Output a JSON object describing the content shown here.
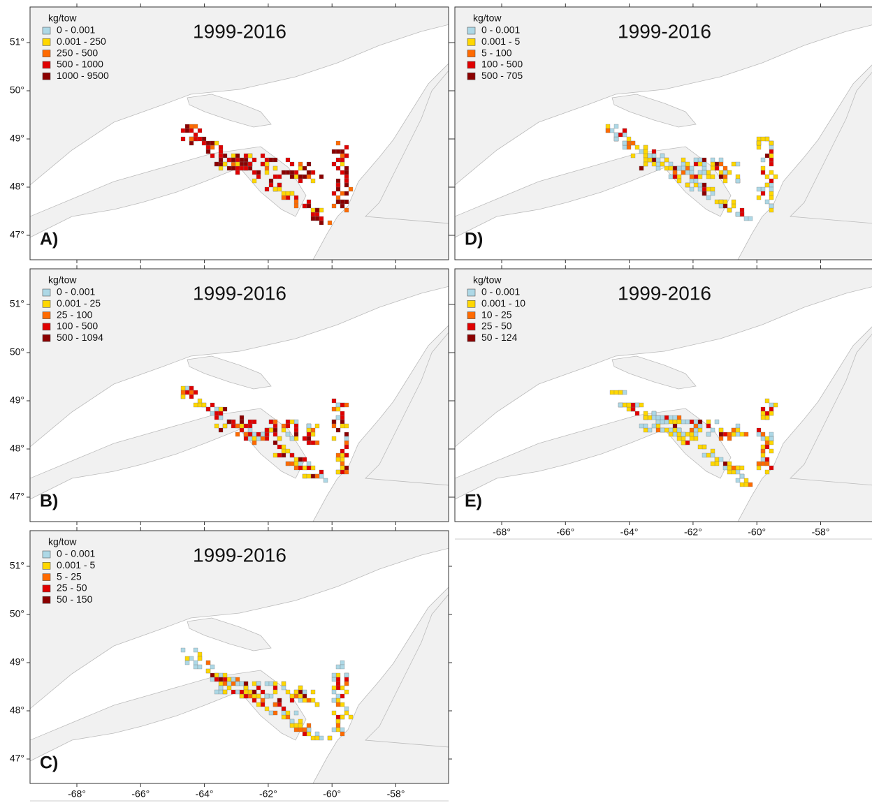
{
  "axes": {
    "lat_labels": [
      "51°",
      "50°",
      "49°",
      "48°",
      "47°"
    ],
    "lon_labels": [
      "-68°",
      "-66°",
      "-64°",
      "-62°",
      "-60°",
      "-58°"
    ]
  },
  "legend_colors": [
    "#add8e6",
    "#ffd700",
    "#ff6a00",
    "#e00000",
    "#8b0000"
  ],
  "panels": [
    {
      "label": "A)",
      "title": "1999-2016",
      "legend_title": "kg/tow",
      "legend": [
        "0 - 0.001",
        "0.001 - 250",
        "250 - 500",
        "500 - 1000",
        "1000 - 9500"
      ]
    },
    {
      "label": "B)",
      "title": "1999-2016",
      "legend_title": "kg/tow",
      "legend": [
        "0 - 0.001",
        "0.001 - 25",
        "25 - 100",
        "100 - 500",
        "500 - 1094"
      ]
    },
    {
      "label": "C)",
      "title": "1999-2016",
      "legend_title": "kg/tow",
      "legend": [
        "0 - 0.001",
        "0.001 - 5",
        "5 - 25",
        "25 - 50",
        "50 - 150"
      ]
    },
    {
      "label": "D)",
      "title": "1999-2016",
      "legend_title": "kg/tow",
      "legend": [
        "0 - 0.001",
        "0.001 - 5",
        "5 - 100",
        "100 - 500",
        "500 - 705"
      ]
    },
    {
      "label": "E)",
      "title": "1999-2016",
      "legend_title": "kg/tow",
      "legend": [
        "0 - 0.001",
        "0.001 - 10",
        "10 - 25",
        "25 - 50",
        "50 - 124"
      ]
    }
  ]
}
